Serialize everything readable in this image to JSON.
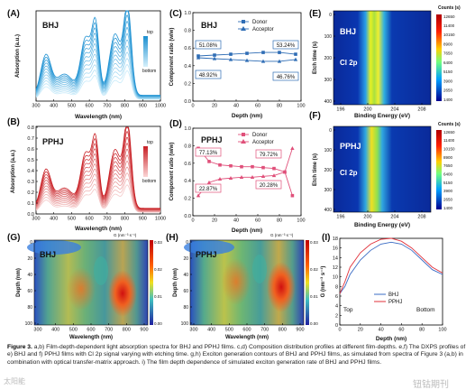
{
  "panels": {
    "A": {
      "letter": "(A)",
      "label": "BHJ",
      "xlabel": "Wavelength (nm)",
      "ylabel": "Absorption (a.u.)",
      "xticks": [
        "300",
        "400",
        "500",
        "600",
        "700",
        "800",
        "900",
        "1000"
      ],
      "gradient_top": "top",
      "gradient_bottom": "bottom",
      "accent": "#2a9fd6"
    },
    "B": {
      "letter": "(B)",
      "label": "PPHJ",
      "xlabel": "Wavelength (nm)",
      "ylabel": "Absorption (a.u.)",
      "xticks": [
        "300",
        "400",
        "500",
        "600",
        "700",
        "800",
        "900",
        "1000"
      ],
      "yticks": [
        "0.0",
        "0.1",
        "0.2",
        "0.3",
        "0.4",
        "0.5",
        "0.6",
        "0.7",
        "0.8"
      ],
      "gradient_top": "top",
      "gradient_bottom": "bottom",
      "accent": "#d8252c"
    },
    "C": {
      "letter": "(C)",
      "label": "BHJ",
      "xlabel": "Depth (nm)",
      "ylabel": "Component ratio (w/w)",
      "xticks": [
        "0",
        "20",
        "40",
        "60",
        "80",
        "100"
      ],
      "yticks": [
        "0.0",
        "0.2",
        "0.4",
        "0.6",
        "0.8",
        "1.0"
      ],
      "legend": [
        "Donor",
        "Acceptor"
      ],
      "annotations": [
        "51.08%",
        "48.92%",
        "53.24%",
        "46.76%"
      ]
    },
    "D": {
      "letter": "(D)",
      "label": "PPHJ",
      "xlabel": "Depth (nm)",
      "ylabel": "Component ratio (w/w)",
      "xticks": [
        "0",
        "20",
        "40",
        "60",
        "80",
        "100"
      ],
      "yticks": [
        "0.0",
        "0.2",
        "0.4",
        "0.6",
        "0.8",
        "1.0"
      ],
      "legend": [
        "Donor",
        "Acceptor"
      ],
      "annotations": [
        "77.13%",
        "22.87%",
        "79.72%",
        "20.28%"
      ]
    },
    "E": {
      "letter": "(E)",
      "label": "BHJ",
      "sublabel": "Cl 2p",
      "xlabel": "Binding Energy (eV)",
      "ylabel": "Etch time (s)",
      "xticks": [
        "196",
        "200",
        "204",
        "208"
      ],
      "yticks": [
        "0",
        "100",
        "200",
        "300",
        "400"
      ],
      "colorbar_title": "Counts (s)",
      "colorbar_ticks": [
        "12650",
        "11400",
        "10150",
        "8900",
        "7650",
        "6400",
        "5150",
        "3900",
        "2650",
        "1400"
      ]
    },
    "F": {
      "letter": "(F)",
      "label": "PPHJ",
      "sublabel": "Cl 2p",
      "xlabel": "Binding Energy (eV)",
      "ylabel": "Etch time (s)",
      "xticks": [
        "196",
        "200",
        "204",
        "208"
      ],
      "yticks": [
        "0",
        "100",
        "200",
        "300",
        "400"
      ],
      "colorbar_title": "Counts (s)",
      "colorbar_ticks": [
        "12650",
        "11400",
        "10150",
        "8900",
        "7650",
        "6400",
        "5150",
        "3900",
        "2650",
        "1400"
      ]
    },
    "G": {
      "letter": "(G)",
      "label": "BHJ",
      "xlabel": "Wavelength (nm)",
      "ylabel": "Depth (nm)",
      "xticks": [
        "300",
        "400",
        "500",
        "600",
        "700",
        "800",
        "900"
      ],
      "yticks": [
        "0",
        "20",
        "40",
        "60",
        "80",
        "100"
      ],
      "colorbar_title": "G (nm⁻³ s⁻¹)",
      "colorbar_ticks": [
        "0.03",
        "0.02",
        "0.01",
        "0.00"
      ]
    },
    "H": {
      "letter": "(H)",
      "label": "PPHJ",
      "xlabel": "Wavelength (nm)",
      "ylabel": "Depth (nm)",
      "xticks": [
        "300",
        "400",
        "500",
        "600",
        "700",
        "800",
        "900"
      ],
      "yticks": [
        "0",
        "20",
        "40",
        "60",
        "80",
        "100"
      ],
      "colorbar_title": "G (nm⁻³ s⁻¹)",
      "colorbar_ticks": [
        "0.03",
        "0.02",
        "0.01",
        "0.00"
      ]
    },
    "I": {
      "letter": "(I)",
      "xlabel": "Depth (nm)",
      "ylabel": "G (nm⁻³ s⁻¹)",
      "xticks": [
        "0",
        "20",
        "40",
        "60",
        "80",
        "100"
      ],
      "yticks": [
        "0",
        "2",
        "4",
        "6",
        "8",
        "10",
        "12",
        "14",
        "16",
        "18"
      ],
      "legend": [
        "BHJ",
        "PPHJ"
      ],
      "top_label": "Top",
      "bottom_label": "Bottom"
    }
  },
  "chart_data": [
    {
      "type": "line",
      "panel": "C",
      "xlabel": "Depth (nm)",
      "ylabel": "Component ratio (w/w)",
      "xlim": [
        0,
        100
      ],
      "ylim": [
        0,
        1.0
      ],
      "x": [
        5,
        20,
        35,
        50,
        65,
        80,
        95
      ],
      "series": [
        {
          "name": "Donor",
          "values": [
            0.51,
            0.52,
            0.53,
            0.54,
            0.55,
            0.55,
            0.53
          ]
        },
        {
          "name": "Acceptor",
          "values": [
            0.49,
            0.48,
            0.47,
            0.46,
            0.45,
            0.45,
            0.47
          ]
        }
      ]
    },
    {
      "type": "line",
      "panel": "D",
      "xlabel": "Depth (nm)",
      "ylabel": "Component ratio (w/w)",
      "xlim": [
        0,
        100
      ],
      "ylim": [
        0,
        1.0
      ],
      "x": [
        5,
        15,
        25,
        35,
        45,
        55,
        65,
        75,
        85,
        92
      ],
      "series": [
        {
          "name": "Donor",
          "values": [
            0.77,
            0.62,
            0.58,
            0.57,
            0.56,
            0.56,
            0.55,
            0.54,
            0.5,
            0.23
          ]
        },
        {
          "name": "Acceptor",
          "values": [
            0.23,
            0.38,
            0.42,
            0.43,
            0.44,
            0.44,
            0.45,
            0.46,
            0.5,
            0.77
          ]
        }
      ]
    },
    {
      "type": "line",
      "panel": "I",
      "xlabel": "Depth (nm)",
      "ylabel": "G (nm⁻³ s⁻¹)",
      "xlim": [
        0,
        100
      ],
      "ylim": [
        0,
        18
      ],
      "x": [
        0,
        5,
        10,
        20,
        30,
        40,
        50,
        60,
        70,
        80,
        90,
        100
      ],
      "series": [
        {
          "name": "BHJ",
          "values": [
            6.5,
            8.0,
            10.5,
            13.5,
            15.5,
            16.8,
            17.2,
            16.8,
            15.5,
            13.5,
            11.5,
            10.5
          ]
        },
        {
          "name": "PPHJ",
          "values": [
            6.5,
            9.0,
            12.0,
            15.0,
            16.8,
            17.8,
            18.0,
            17.4,
            16.0,
            14.0,
            12.0,
            10.8
          ]
        }
      ]
    }
  ],
  "colors": {
    "donor": "#2f6db5",
    "acceptor": "#2f6db5",
    "pphj_donor": "#e0507a",
    "bhj_line": "#3a6bc4",
    "pphj_line": "#e0303a"
  },
  "caption": {
    "lead": "Figure 3.",
    "text": " a,b) Film-depth-dependent light absorption spectra for BHJ and PPHJ films. c,d) Composition distribution profiles at different film-depths. e,f) The DXPS profiles of e) BHJ and f) PPHJ films with Cl 2p signal varying with etching time. g,h) Exciton generation contours of BHJ and PPHJ films, as simulated from spectra of Figure 3 (a,b) in combination with optical transfer-matrix approach. i) The film depth dependence of simulated exciton generation rate of BHJ and PPHJ films."
  },
  "watermarks": {
    "left": "太阳能",
    "right": "钮钴期刊"
  }
}
